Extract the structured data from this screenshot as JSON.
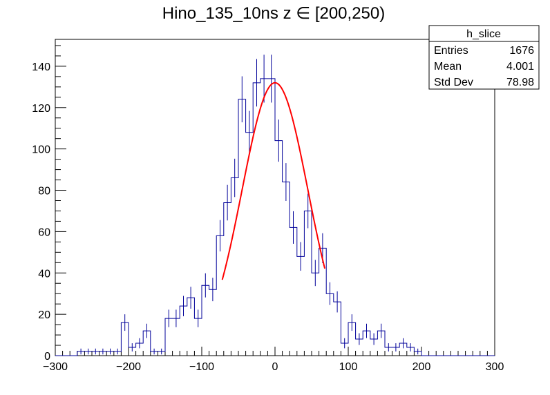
{
  "chart_data": {
    "type": "histogram",
    "title": "Hino_135_10ns z  ∈ [200,250)",
    "xlabel": "",
    "ylabel": "",
    "xlim": [
      -300,
      300
    ],
    "ylim": [
      0,
      153
    ],
    "x_ticks": [
      "−300",
      "−200",
      "−100",
      "0",
      "100",
      "200",
      "300"
    ],
    "y_ticks": [
      "0",
      "20",
      "40",
      "60",
      "80",
      "100",
      "120",
      "140"
    ],
    "bin_width": 10,
    "bin_start": -300,
    "series": [
      {
        "values": [
          0,
          0,
          0,
          2,
          2,
          2,
          2,
          2,
          2,
          16,
          4,
          6,
          12,
          2,
          2,
          18,
          18,
          24,
          28,
          18,
          34,
          32,
          58,
          74,
          86,
          124,
          108,
          132,
          134,
          134,
          104,
          84,
          62,
          48,
          70,
          40,
          52,
          30,
          26,
          6,
          16,
          8,
          12,
          8,
          12,
          4,
          4,
          6,
          4,
          2,
          0,
          0,
          0,
          0,
          0,
          0,
          0,
          0,
          0,
          0
        ],
        "color": "#000099"
      }
    ],
    "fit": {
      "type": "gaussian",
      "amplitude": 132,
      "mean": 0,
      "sigma": 45,
      "range": [
        -72,
        68
      ],
      "color": "#ff0000"
    },
    "grid": false,
    "legend": {
      "title": "h_slice",
      "placement": "top-right",
      "rows": [
        {
          "label": "Entries",
          "value": "1676"
        },
        {
          "label": "Mean",
          "value": "4.001"
        },
        {
          "label": "Std Dev",
          "value": "78.98"
        }
      ]
    }
  }
}
